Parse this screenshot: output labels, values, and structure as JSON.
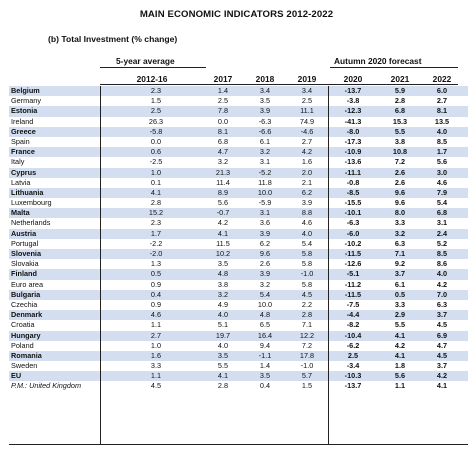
{
  "title": "MAIN ECONOMIC INDICATORS 2012-2022",
  "subtitle": "(b) Total Investment (% change)",
  "header": {
    "five_year_label": "5-year average",
    "forecast_label": "Autumn 2020 forecast",
    "years": [
      "2012-16",
      "2017",
      "2018",
      "2019",
      "2020",
      "2021",
      "2022"
    ]
  },
  "rows": [
    {
      "country": "Belgium",
      "values": [
        "2.3",
        "1.4",
        "3.4",
        "3.4",
        "-13.7",
        "5.9",
        "6.0"
      ],
      "shaded": true,
      "bold": true
    },
    {
      "country": "Germany",
      "values": [
        "1.5",
        "2.5",
        "3.5",
        "2.5",
        "-3.8",
        "2.8",
        "2.7"
      ],
      "shaded": false,
      "bold": false
    },
    {
      "country": "Estonia",
      "values": [
        "2.5",
        "7.8",
        "3.9",
        "11.1",
        "-12.3",
        "6.8",
        "8.1"
      ],
      "shaded": true,
      "bold": true
    },
    {
      "country": "Ireland",
      "values": [
        "26.3",
        "0.0",
        "-6.3",
        "74.9",
        "-41.3",
        "15.3",
        "13.5"
      ],
      "shaded": false,
      "bold": false
    },
    {
      "country": "Greece",
      "values": [
        "-5.8",
        "8.1",
        "-6.6",
        "-4.6",
        "-8.0",
        "5.5",
        "4.0"
      ],
      "shaded": true,
      "bold": true
    },
    {
      "country": "Spain",
      "values": [
        "0.0",
        "6.8",
        "6.1",
        "2.7",
        "-17.3",
        "3.8",
        "8.5"
      ],
      "shaded": false,
      "bold": false
    },
    {
      "country": "France",
      "values": [
        "0.6",
        "4.7",
        "3.2",
        "4.2",
        "-10.9",
        "10.8",
        "1.7"
      ],
      "shaded": true,
      "bold": true
    },
    {
      "country": "Italy",
      "values": [
        "-2.5",
        "3.2",
        "3.1",
        "1.6",
        "-13.6",
        "7.2",
        "5.6"
      ],
      "shaded": false,
      "bold": false
    },
    {
      "country": "Cyprus",
      "values": [
        "1.0",
        "21.3",
        "-5.2",
        "2.0",
        "-11.1",
        "2.6",
        "3.0"
      ],
      "shaded": true,
      "bold": true
    },
    {
      "country": "Latvia",
      "values": [
        "0.1",
        "11.4",
        "11.8",
        "2.1",
        "-0.8",
        "2.6",
        "4.6"
      ],
      "shaded": false,
      "bold": false
    },
    {
      "country": "Lithuania",
      "values": [
        "4.1",
        "8.9",
        "10.0",
        "6.2",
        "-8.5",
        "9.6",
        "7.9"
      ],
      "shaded": true,
      "bold": true
    },
    {
      "country": "Luxembourg",
      "values": [
        "2.8",
        "5.6",
        "-5.9",
        "3.9",
        "-15.5",
        "9.6",
        "5.4"
      ],
      "shaded": false,
      "bold": false
    },
    {
      "country": "Malta",
      "values": [
        "15.2",
        "-0.7",
        "3.1",
        "8.8",
        "-10.1",
        "8.0",
        "6.8"
      ],
      "shaded": true,
      "bold": true
    },
    {
      "country": "Netherlands",
      "values": [
        "2.3",
        "4.2",
        "3.6",
        "4.6",
        "-6.3",
        "3.3",
        "3.1"
      ],
      "shaded": false,
      "bold": false
    },
    {
      "country": "Austria",
      "values": [
        "1.7",
        "4.1",
        "3.9",
        "4.0",
        "-6.0",
        "3.2",
        "2.4"
      ],
      "shaded": true,
      "bold": true
    },
    {
      "country": "Portugal",
      "values": [
        "-2.2",
        "11.5",
        "6.2",
        "5.4",
        "-10.2",
        "6.3",
        "5.2"
      ],
      "shaded": false,
      "bold": false
    },
    {
      "country": "Slovenia",
      "values": [
        "-2.0",
        "10.2",
        "9.6",
        "5.8",
        "-11.5",
        "7.1",
        "8.5"
      ],
      "shaded": true,
      "bold": true
    },
    {
      "country": "Slovakia",
      "values": [
        "1.3",
        "3.5",
        "2.6",
        "5.8",
        "-12.6",
        "9.2",
        "8.6"
      ],
      "shaded": false,
      "bold": false
    },
    {
      "country": "Finland",
      "values": [
        "0.5",
        "4.8",
        "3.9",
        "-1.0",
        "-5.1",
        "3.7",
        "4.0"
      ],
      "shaded": true,
      "bold": true
    },
    {
      "country": "Euro area",
      "values": [
        "0.9",
        "3.8",
        "3.2",
        "5.8",
        "-11.2",
        "6.1",
        "4.2"
      ],
      "shaded": false,
      "bold": false
    },
    {
      "country": "Bulgaria",
      "values": [
        "0.4",
        "3.2",
        "5.4",
        "4.5",
        "-11.5",
        "0.5",
        "7.0"
      ],
      "shaded": true,
      "bold": true
    },
    {
      "country": "Czechia",
      "values": [
        "0.9",
        "4.9",
        "10.0",
        "2.2",
        "-7.5",
        "3.3",
        "6.3"
      ],
      "shaded": false,
      "bold": false
    },
    {
      "country": "Denmark",
      "values": [
        "4.6",
        "4.0",
        "4.8",
        "2.8",
        "-4.4",
        "2.9",
        "3.7"
      ],
      "shaded": true,
      "bold": true
    },
    {
      "country": "Croatia",
      "values": [
        "1.1",
        "5.1",
        "6.5",
        "7.1",
        "-8.2",
        "5.5",
        "4.5"
      ],
      "shaded": false,
      "bold": false
    },
    {
      "country": "Hungary",
      "values": [
        "2.7",
        "19.7",
        "16.4",
        "12.2",
        "-10.4",
        "4.1",
        "6.9"
      ],
      "shaded": true,
      "bold": true
    },
    {
      "country": "Poland",
      "values": [
        "1.0",
        "4.0",
        "9.4",
        "7.2",
        "-6.2",
        "4.2",
        "4.7"
      ],
      "shaded": false,
      "bold": false
    },
    {
      "country": "Romania",
      "values": [
        "1.6",
        "3.5",
        "-1.1",
        "17.8",
        "2.5",
        "4.1",
        "4.5"
      ],
      "shaded": true,
      "bold": true
    },
    {
      "country": "Sweden",
      "values": [
        "3.3",
        "5.5",
        "1.4",
        "-1.0",
        "-3.4",
        "1.8",
        "3.7"
      ],
      "shaded": false,
      "bold": false
    },
    {
      "country": "EU",
      "values": [
        "1.1",
        "4.1",
        "3.5",
        "5.7",
        "-10.3",
        "5.6",
        "4.2"
      ],
      "shaded": true,
      "bold": true
    },
    {
      "country": "P.M.: United Kingdom",
      "values": [
        "4.5",
        "2.8",
        "0.4",
        "1.5",
        "-13.7",
        "1.1",
        "4.1"
      ],
      "shaded": false,
      "bold": false,
      "italic": true
    }
  ]
}
